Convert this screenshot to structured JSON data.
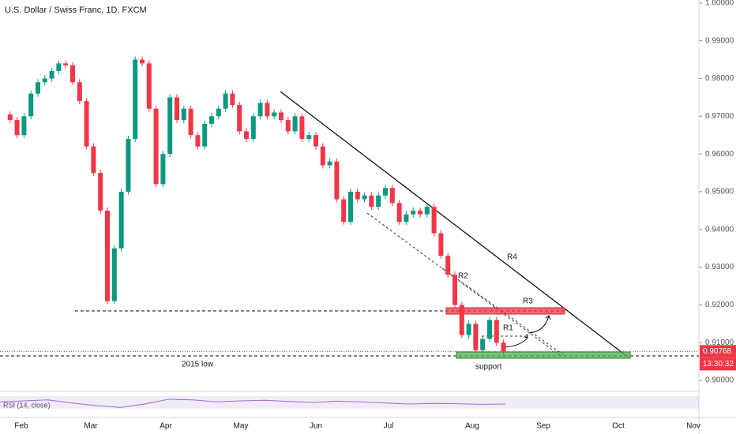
{
  "chart_data": {
    "type": "candlestick",
    "title": "U.S. Dollar / Swiss Franc, 1D, FXCM",
    "closes": [
      0.9705,
      0.969,
      0.965,
      0.97,
      0.976,
      0.979,
      0.98,
      0.982,
      0.984,
      0.9835,
      0.979,
      0.974,
      0.962,
      0.955,
      0.945,
      0.921,
      0.935,
      0.95,
      0.964,
      0.985,
      0.984,
      0.972,
      0.952,
      0.96,
      0.975,
      0.969,
      0.972,
      0.965,
      0.962,
      0.968,
      0.97,
      0.972,
      0.976,
      0.973,
      0.966,
      0.964,
      0.97,
      0.9735,
      0.97,
      0.971,
      0.969,
      0.966,
      0.97,
      0.964,
      0.965,
      0.962,
      0.957,
      0.958,
      0.948,
      0.942,
      0.95,
      0.948,
      0.949,
      0.946,
      0.949,
      0.951,
      0.947,
      0.942,
      0.944,
      0.945,
      0.944,
      0.946,
      0.939,
      0.933,
      0.928,
      0.92,
      0.912,
      0.915,
      0.908,
      0.911,
      0.916,
      0.91,
      0.90768
    ],
    "up_color": "#089981",
    "down_color": "#f23645",
    "ylim": [
      0.8973,
      1.0008
    ],
    "yticks": [
      {
        "value": 1.0,
        "label": "1.00000"
      },
      {
        "value": 0.99,
        "label": "0.99000"
      },
      {
        "value": 0.98,
        "label": "0.98000"
      },
      {
        "value": 0.97,
        "label": "0.97000"
      },
      {
        "value": 0.96,
        "label": "0.96000"
      },
      {
        "value": 0.95,
        "label": "0.95000"
      },
      {
        "value": 0.94,
        "label": "0.94000"
      },
      {
        "value": 0.93,
        "label": "0.93000"
      },
      {
        "value": 0.92,
        "label": "0.92000"
      },
      {
        "value": 0.91,
        "label": "0.91000"
      },
      {
        "value": 0.9,
        "label": "0.90000"
      }
    ],
    "xtick_labels": [
      "Feb",
      "Mar",
      "Apr",
      "May",
      "Jun",
      "Jul",
      "Aug",
      "Sep",
      "Oct",
      "Nov"
    ],
    "last_price": {
      "value": 0.90768,
      "label": "0.90768"
    },
    "countdown": "13:30:32",
    "annotations": {
      "r4": "R4",
      "r3": "R3",
      "r2": "R2",
      "r1": "R1",
      "support": "support",
      "low_2015": "2015 low"
    },
    "rsi": {
      "label": "RSI (14, close)",
      "values": [
        52,
        55,
        58,
        48,
        40,
        34,
        45,
        60,
        58,
        52,
        55,
        57,
        53,
        50,
        54,
        52,
        48,
        45,
        47,
        46,
        44,
        45
      ],
      "ylim": [
        0,
        100
      ],
      "color": "#9c6fd6"
    }
  }
}
